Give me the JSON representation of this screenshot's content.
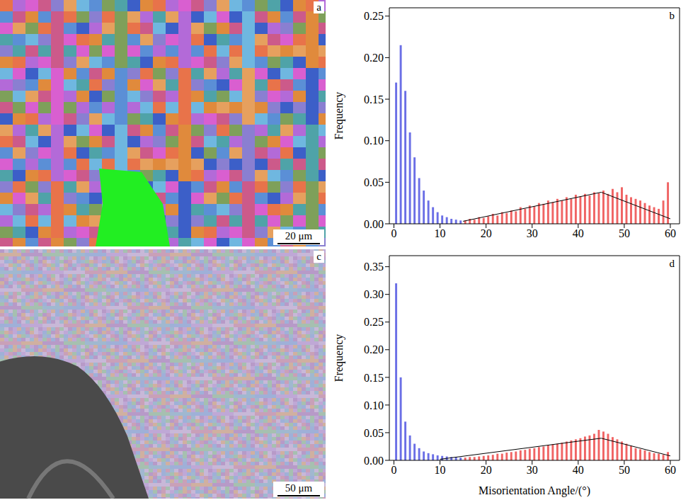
{
  "images": [
    {
      "label": "a",
      "scale_bar": "20 μm"
    },
    {
      "label": "c",
      "scale_bar": "50 μm"
    }
  ],
  "chart_data": [
    {
      "label": "b",
      "type": "histogram",
      "ylabel": "Frequency",
      "bins": [
        0,
        1,
        2,
        3,
        4,
        5,
        6,
        7,
        8,
        9,
        10,
        11,
        12,
        13,
        14,
        15,
        16,
        17,
        18,
        19,
        20,
        21,
        22,
        23,
        24,
        25,
        26,
        27,
        28,
        29,
        30,
        31,
        32,
        33,
        34,
        35,
        36,
        37,
        38,
        39,
        40,
        41,
        42,
        43,
        44,
        45,
        46,
        47,
        48,
        49,
        50,
        51,
        52,
        53,
        54,
        55,
        56,
        57,
        58,
        59,
        60
      ],
      "values": [
        0.17,
        0.215,
        0.16,
        0.11,
        0.08,
        0.055,
        0.04,
        0.028,
        0.02,
        0.014,
        0.01,
        0.008,
        0.006,
        0.005,
        0.004,
        0.004,
        0.006,
        0.005,
        0.008,
        0.007,
        0.009,
        0.012,
        0.01,
        0.014,
        0.013,
        0.016,
        0.015,
        0.02,
        0.018,
        0.022,
        0.021,
        0.025,
        0.024,
        0.028,
        0.026,
        0.03,
        0.028,
        0.032,
        0.03,
        0.035,
        0.033,
        0.036,
        0.034,
        0.038,
        0.037,
        0.04,
        0.036,
        0.042,
        0.038,
        0.044,
        0.035,
        0.032,
        0.03,
        0.028,
        0.025,
        0.022,
        0.02,
        0.018,
        0.028,
        0.05
      ],
      "colors": [
        "#6b6fe6",
        "#6b6fe6",
        "#6b6fe6",
        "#6b6fe6",
        "#6b6fe6",
        "#6b6fe6",
        "#6b6fe6",
        "#6b6fe6",
        "#6b6fe6",
        "#6b6fe6",
        "#6b6fe6",
        "#6b6fe6",
        "#6b6fe6",
        "#6b6fe6",
        "#6b6fe6",
        "#f06464",
        "#f06464",
        "#f06464",
        "#f06464",
        "#f06464",
        "#f06464",
        "#f06464",
        "#f06464",
        "#f06464",
        "#f06464",
        "#f06464",
        "#f06464",
        "#f06464",
        "#f06464",
        "#f06464",
        "#f06464",
        "#f06464",
        "#f06464",
        "#f06464",
        "#f06464",
        "#f06464",
        "#f06464",
        "#f06464",
        "#f06464",
        "#f06464",
        "#f06464",
        "#f06464",
        "#f06464",
        "#f06464",
        "#f06464",
        "#f06464",
        "#f06464",
        "#f06464",
        "#f06464",
        "#f06464",
        "#f06464",
        "#f06464",
        "#f06464",
        "#f06464",
        "#f06464",
        "#f06464",
        "#f06464",
        "#f06464",
        "#f06464",
        "#f06464"
      ],
      "line": {
        "x": [
          15,
          45,
          60
        ],
        "y": [
          0.003,
          0.038,
          0.006
        ],
        "color": "#000000"
      },
      "xlim": [
        -1,
        62
      ],
      "ylim": [
        0,
        0.26
      ],
      "xticks": [
        0,
        10,
        20,
        30,
        40,
        50,
        60
      ],
      "yticks": [
        {
          "value": 0,
          "label": "0.00"
        },
        {
          "value": 0.05,
          "label": "0.05"
        },
        {
          "value": 0.1,
          "label": "0.10"
        },
        {
          "value": 0.15,
          "label": "0.15"
        },
        {
          "value": 0.2,
          "label": "0.20"
        },
        {
          "value": 0.25,
          "label": "0.25"
        }
      ]
    },
    {
      "label": "d",
      "type": "histogram",
      "ylabel": "Frequency",
      "xlabel": "Misorientation Angle/(°)",
      "bins": [
        0,
        1,
        2,
        3,
        4,
        5,
        6,
        7,
        8,
        9,
        10,
        11,
        12,
        13,
        14,
        15,
        16,
        17,
        18,
        19,
        20,
        21,
        22,
        23,
        24,
        25,
        26,
        27,
        28,
        29,
        30,
        31,
        32,
        33,
        34,
        35,
        36,
        37,
        38,
        39,
        40,
        41,
        42,
        43,
        44,
        45,
        46,
        47,
        48,
        49,
        50,
        51,
        52,
        53,
        54,
        55,
        56,
        57,
        58,
        59,
        60
      ],
      "values": [
        0.32,
        0.15,
        0.07,
        0.045,
        0.03,
        0.022,
        0.016,
        0.013,
        0.011,
        0.009,
        0.008,
        0.007,
        0.006,
        0.006,
        0.005,
        0.005,
        0.006,
        0.006,
        0.007,
        0.008,
        0.009,
        0.01,
        0.012,
        0.012,
        0.014,
        0.015,
        0.016,
        0.018,
        0.019,
        0.021,
        0.022,
        0.024,
        0.025,
        0.027,
        0.029,
        0.03,
        0.032,
        0.034,
        0.036,
        0.038,
        0.04,
        0.043,
        0.045,
        0.048,
        0.055,
        0.052,
        0.048,
        0.042,
        0.038,
        0.034,
        0.03,
        0.026,
        0.022,
        0.02,
        0.018,
        0.015,
        0.013,
        0.012,
        0.01,
        0.015
      ],
      "colors": [
        "#6b6fe6",
        "#6b6fe6",
        "#6b6fe6",
        "#6b6fe6",
        "#6b6fe6",
        "#6b6fe6",
        "#6b6fe6",
        "#6b6fe6",
        "#6b6fe6",
        "#6b6fe6",
        "#6b6fe6",
        "#6b6fe6",
        "#6b6fe6",
        "#6b6fe6",
        "#6b6fe6",
        "#f06464",
        "#f06464",
        "#f06464",
        "#f06464",
        "#f06464",
        "#f06464",
        "#f06464",
        "#f06464",
        "#f06464",
        "#f06464",
        "#f06464",
        "#f06464",
        "#f06464",
        "#f06464",
        "#f06464",
        "#f06464",
        "#f06464",
        "#f06464",
        "#f06464",
        "#f06464",
        "#f06464",
        "#f06464",
        "#f06464",
        "#f06464",
        "#f06464",
        "#f06464",
        "#f06464",
        "#f06464",
        "#f06464",
        "#f06464",
        "#f06464",
        "#f06464",
        "#f06464",
        "#f06464",
        "#f06464",
        "#f06464",
        "#f06464",
        "#f06464",
        "#f06464",
        "#f06464",
        "#f06464",
        "#f06464",
        "#f06464",
        "#f06464",
        "#f06464"
      ],
      "line": {
        "x": [
          10,
          45,
          60
        ],
        "y": [
          0.002,
          0.04,
          0.008
        ],
        "color": "#000000"
      },
      "xlim": [
        -1,
        62
      ],
      "ylim": [
        0,
        0.37
      ],
      "xticks": [
        0,
        10,
        20,
        30,
        40,
        50,
        60
      ],
      "yticks": [
        {
          "value": 0,
          "label": "0.00"
        },
        {
          "value": 0.05,
          "label": "0.05"
        },
        {
          "value": 0.1,
          "label": "0.10"
        },
        {
          "value": 0.15,
          "label": "0.15"
        },
        {
          "value": 0.2,
          "label": "0.20"
        },
        {
          "value": 0.25,
          "label": "0.25"
        },
        {
          "value": 0.3,
          "label": "0.30"
        },
        {
          "value": 0.35,
          "label": "0.35"
        }
      ]
    }
  ]
}
